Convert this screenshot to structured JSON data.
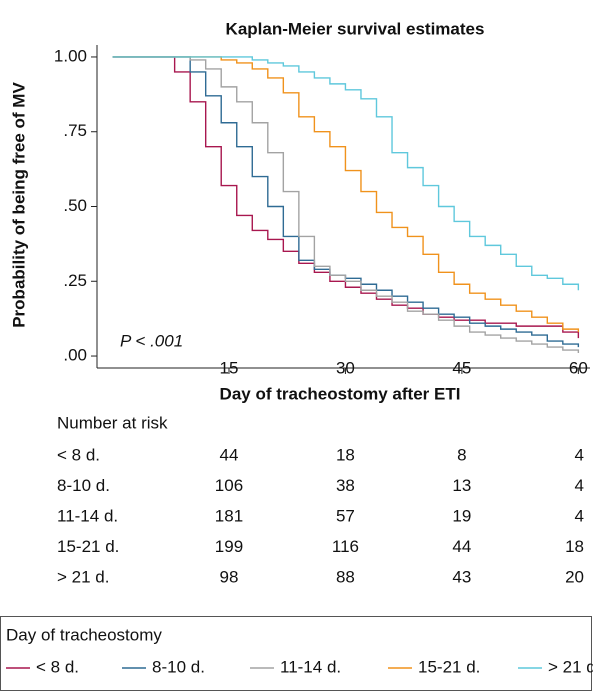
{
  "chart_data": {
    "type": "line",
    "step": true,
    "title": "Kaplan-Meier survival estimates",
    "x_label": "Day of tracheostomy after ETI",
    "y_label": "Probability of being free of MV",
    "annotation": "P < .001",
    "x": [
      0,
      2,
      4,
      6,
      8,
      10,
      12,
      14,
      16,
      18,
      20,
      22,
      24,
      26,
      28,
      30,
      32,
      34,
      36,
      38,
      40,
      42,
      44,
      46,
      48,
      50,
      52,
      54,
      56,
      58,
      60
    ],
    "series": [
      {
        "name": "< 8 d.",
        "color": "#a8174f",
        "values": [
          1,
          1,
          1,
          1,
          0.95,
          0.85,
          0.7,
          0.57,
          0.47,
          0.42,
          0.39,
          0.35,
          0.31,
          0.28,
          0.25,
          0.23,
          0.21,
          0.19,
          0.17,
          0.16,
          0.14,
          0.13,
          0.12,
          0.12,
          0.11,
          0.11,
          0.1,
          0.1,
          0.1,
          0.08,
          0.06
        ]
      },
      {
        "name": "8-10 d.",
        "color": "#2f6b94",
        "values": [
          1,
          1,
          1,
          1,
          1,
          0.95,
          0.87,
          0.78,
          0.7,
          0.6,
          0.5,
          0.4,
          0.32,
          0.29,
          0.27,
          0.26,
          0.24,
          0.22,
          0.2,
          0.18,
          0.16,
          0.14,
          0.13,
          0.11,
          0.1,
          0.09,
          0.08,
          0.07,
          0.05,
          0.04,
          0.03
        ]
      },
      {
        "name": "11-14 d.",
        "color": "#a3a3a3",
        "values": [
          1,
          1,
          1,
          1,
          1,
          0.99,
          0.96,
          0.9,
          0.85,
          0.78,
          0.68,
          0.55,
          0.4,
          0.3,
          0.27,
          0.25,
          0.22,
          0.2,
          0.18,
          0.15,
          0.14,
          0.12,
          0.1,
          0.08,
          0.07,
          0.06,
          0.05,
          0.04,
          0.03,
          0.02,
          0.01
        ]
      },
      {
        "name": "15-21 d.",
        "color": "#f0921c",
        "values": [
          1,
          1,
          1,
          1,
          1,
          1,
          1,
          0.99,
          0.98,
          0.96,
          0.93,
          0.88,
          0.8,
          0.75,
          0.7,
          0.62,
          0.55,
          0.48,
          0.43,
          0.4,
          0.34,
          0.28,
          0.24,
          0.21,
          0.19,
          0.17,
          0.15,
          0.13,
          0.11,
          0.09,
          0.08
        ]
      },
      {
        "name": "> 21 d.",
        "color": "#5fc8dc",
        "values": [
          1,
          1,
          1,
          1,
          1,
          1,
          1,
          1,
          1,
          0.99,
          0.98,
          0.97,
          0.95,
          0.93,
          0.91,
          0.89,
          0.86,
          0.8,
          0.68,
          0.63,
          0.57,
          0.5,
          0.45,
          0.4,
          0.37,
          0.34,
          0.3,
          0.27,
          0.26,
          0.24,
          0.22
        ]
      }
    ],
    "xlim": [
      -2,
      61.5
    ],
    "ylim": [
      -0.04,
      1.04
    ],
    "xticks": [
      15,
      30,
      45,
      60
    ],
    "yticks": [
      {
        "value": 0,
        "label": ".00"
      },
      {
        "value": 0.25,
        "label": ".25"
      },
      {
        "value": 0.5,
        "label": ".50"
      },
      {
        "value": 0.75,
        "label": ".75"
      },
      {
        "value": 1,
        "label": "1.00"
      }
    ],
    "risk_table": {
      "title": "Number at risk",
      "rows": [
        {
          "label": "< 8 d.",
          "values": [
            44,
            18,
            8,
            4
          ]
        },
        {
          "label": "8-10 d.",
          "values": [
            106,
            38,
            13,
            4
          ]
        },
        {
          "label": "11-14 d.",
          "values": [
            181,
            57,
            19,
            4
          ]
        },
        {
          "label": "15-21 d.",
          "values": [
            199,
            116,
            44,
            18
          ]
        },
        {
          "label": "> 21 d.",
          "values": [
            98,
            88,
            43,
            20
          ]
        }
      ]
    },
    "legend_title": "Day of tracheostomy"
  }
}
